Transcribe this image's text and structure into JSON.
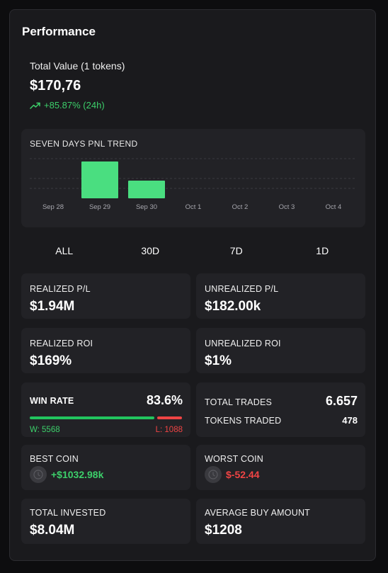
{
  "panel": {
    "title": "Performance"
  },
  "total_value": {
    "label": "Total Value (1 tokens)",
    "value": "$170,76",
    "change": "+85.87% (24h)",
    "change_icon": "trending-up-icon"
  },
  "chart_data": {
    "type": "bar",
    "title": "SEVEN DAYS PNL TREND",
    "categories": [
      "Sep 28",
      "Sep 29",
      "Sep 30",
      "Oct 1",
      "Oct 2",
      "Oct 3",
      "Oct 4"
    ],
    "values": [
      0,
      100,
      48,
      0,
      0,
      0,
      0
    ],
    "ylim": [
      0,
      100
    ],
    "grid": true,
    "bar_color": "#4ade80"
  },
  "tabs": [
    "ALL",
    "30D",
    "7D",
    "1D"
  ],
  "stats": {
    "realized_pl": {
      "label": "REALIZED P/L",
      "value": "$1.94M"
    },
    "unrealized_pl": {
      "label": "UNREALIZED P/L",
      "value": "$182.00k"
    },
    "realized_roi": {
      "label": "REALIZED ROI",
      "value": "$169%"
    },
    "unrealized_roi": {
      "label": "UNREALIZED ROI",
      "value": "$1%"
    },
    "win_rate": {
      "label": "WIN RATE",
      "value": "83.6%",
      "win_fraction": 0.836,
      "wins": "W: 5568",
      "losses": "L: 1088"
    },
    "total_trades": {
      "label": "TOTAL TRADES",
      "value": "6.657"
    },
    "tokens_traded": {
      "label": "TOKENS TRADED",
      "value": "478"
    },
    "best_coin": {
      "label": "BEST COIN",
      "value": "+$1032.98k"
    },
    "worst_coin": {
      "label": "WORST COIN",
      "value": "$-52.44"
    },
    "total_invested": {
      "label": "TOTAL INVESTED",
      "value": "$8.04M"
    },
    "avg_buy": {
      "label": "AVERAGE BUY AMOUNT",
      "value": "$1208"
    }
  },
  "colors": {
    "gain": "#3ccf6a",
    "loss": "#ef4444",
    "card": "#222226",
    "panel": "#1a1a1d"
  }
}
